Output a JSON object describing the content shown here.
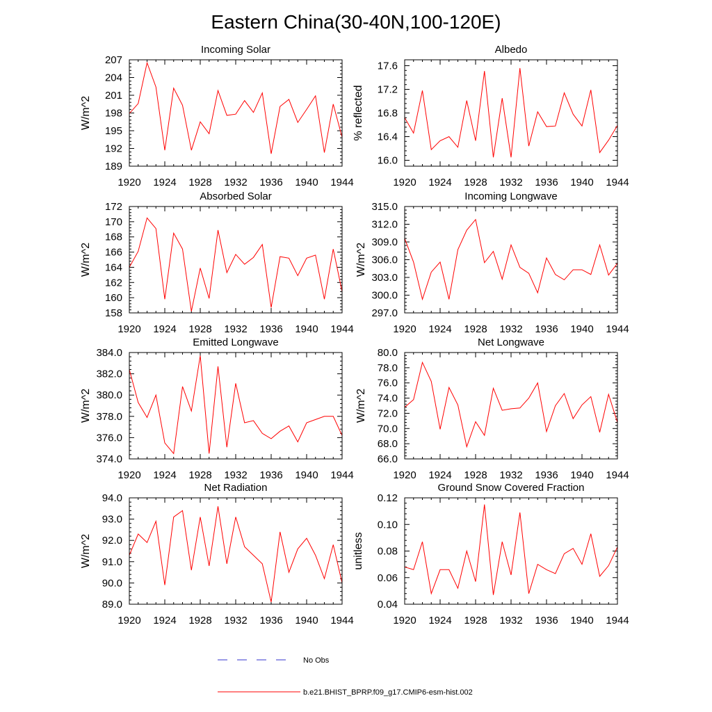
{
  "title": "Eastern China(30-40N,100-120E)",
  "legend": {
    "obs_label": "No Obs",
    "obs_color": "#3333cc",
    "model_label": "b.e21.BHIST_BPRP.f09_g17.CMIP6-esm-hist.002",
    "model_color": "#ff0000"
  },
  "chart_data": [
    {
      "type": "line",
      "title": "Incoming Solar",
      "ylabel": "W/m^2",
      "xlim": [
        1920,
        1944
      ],
      "ylim": [
        189,
        207
      ],
      "yticks": [
        189,
        192,
        195,
        198,
        201,
        204,
        207
      ],
      "ytick_decimals": 0,
      "xticks": [
        1920,
        1924,
        1928,
        1932,
        1936,
        1940,
        1944
      ],
      "series": [
        {
          "name": "b.e21.BHIST_BPRP.f09_g17.CMIP6-esm-hist.002",
          "x": [
            1920,
            1921,
            1922,
            1923,
            1924,
            1925,
            1926,
            1927,
            1928,
            1929,
            1930,
            1931,
            1932,
            1933,
            1934,
            1935,
            1936,
            1937,
            1938,
            1939,
            1940,
            1941,
            1942,
            1943,
            1944
          ],
          "values": [
            197.9,
            199.6,
            206.5,
            202.4,
            191.7,
            202.2,
            199.3,
            191.7,
            196.5,
            194.5,
            201.8,
            197.6,
            197.8,
            200.1,
            198.1,
            201.4,
            191.1,
            199.1,
            200.3,
            196.4,
            198.6,
            200.9,
            191.3,
            199.5,
            193.9
          ]
        }
      ]
    },
    {
      "type": "line",
      "title": "Albedo",
      "ylabel": "% reflected",
      "xlim": [
        1920,
        1944
      ],
      "ylim": [
        15.9,
        17.7
      ],
      "yticks": [
        16.0,
        16.4,
        16.8,
        17.2,
        17.6
      ],
      "ytick_decimals": 1,
      "xticks": [
        1920,
        1924,
        1928,
        1932,
        1936,
        1940,
        1944
      ],
      "series": [
        {
          "name": "b.e21.BHIST_BPRP.f09_g17.CMIP6-esm-hist.002",
          "x": [
            1920,
            1921,
            1922,
            1923,
            1924,
            1925,
            1926,
            1927,
            1928,
            1929,
            1930,
            1931,
            1932,
            1933,
            1934,
            1935,
            1936,
            1937,
            1938,
            1939,
            1940,
            1941,
            1942,
            1943,
            1944
          ],
          "values": [
            16.72,
            16.46,
            17.18,
            16.18,
            16.33,
            16.4,
            16.22,
            17.01,
            16.33,
            17.51,
            16.05,
            17.05,
            16.05,
            17.56,
            16.24,
            16.82,
            16.57,
            16.58,
            17.14,
            16.78,
            16.58,
            17.19,
            16.13,
            16.34,
            16.59
          ]
        }
      ]
    },
    {
      "type": "line",
      "title": "Absorbed Solar",
      "ylabel": "W/m^2",
      "xlim": [
        1920,
        1944
      ],
      "ylim": [
        158,
        172
      ],
      "yticks": [
        158,
        160,
        162,
        164,
        166,
        168,
        170,
        172
      ],
      "ytick_decimals": 0,
      "xticks": [
        1920,
        1924,
        1928,
        1932,
        1936,
        1940,
        1944
      ],
      "series": [
        {
          "name": "b.e21.BHIST_BPRP.f09_g17.CMIP6-esm-hist.002",
          "x": [
            1920,
            1921,
            1922,
            1923,
            1924,
            1925,
            1926,
            1927,
            1928,
            1929,
            1930,
            1931,
            1932,
            1933,
            1934,
            1935,
            1936,
            1937,
            1938,
            1939,
            1940,
            1941,
            1942,
            1943,
            1944
          ],
          "values": [
            164.0,
            166.1,
            170.5,
            169.1,
            159.8,
            168.5,
            166.4,
            158.2,
            163.9,
            159.9,
            168.9,
            163.3,
            165.7,
            164.4,
            165.3,
            167.0,
            158.7,
            165.4,
            165.2,
            162.9,
            165.2,
            165.6,
            159.8,
            166.4,
            160.8
          ]
        }
      ]
    },
    {
      "type": "line",
      "title": "Incoming Longwave",
      "ylabel": "W/m^2",
      "xlim": [
        1920,
        1944
      ],
      "ylim": [
        297,
        315
      ],
      "yticks": [
        297.0,
        300.0,
        303.0,
        306.0,
        309.0,
        312.0,
        315.0
      ],
      "ytick_decimals": 1,
      "xticks": [
        1920,
        1924,
        1928,
        1932,
        1936,
        1940,
        1944
      ],
      "series": [
        {
          "name": "b.e21.BHIST_BPRP.f09_g17.CMIP6-esm-hist.002",
          "x": [
            1920,
            1921,
            1922,
            1923,
            1924,
            1925,
            1926,
            1927,
            1928,
            1929,
            1930,
            1931,
            1932,
            1933,
            1934,
            1935,
            1936,
            1937,
            1938,
            1939,
            1940,
            1941,
            1942,
            1943,
            1944
          ],
          "values": [
            309.6,
            305.6,
            299.3,
            303.9,
            305.6,
            299.3,
            307.7,
            311.0,
            312.8,
            305.5,
            307.4,
            302.7,
            308.5,
            304.7,
            303.7,
            300.4,
            306.3,
            303.5,
            302.6,
            304.3,
            304.3,
            303.5,
            308.5,
            303.4,
            305.4
          ]
        }
      ]
    },
    {
      "type": "line",
      "title": "Emitted Longwave",
      "ylabel": "W/m^2",
      "xlim": [
        1920,
        1944
      ],
      "ylim": [
        374,
        384
      ],
      "yticks": [
        374.0,
        376.0,
        378.0,
        380.0,
        382.0,
        384.0
      ],
      "ytick_decimals": 1,
      "xticks": [
        1920,
        1924,
        1928,
        1932,
        1936,
        1940,
        1944
      ],
      "series": [
        {
          "name": "b.e21.BHIST_BPRP.f09_g17.CMIP6-esm-hist.002",
          "x": [
            1920,
            1921,
            1922,
            1923,
            1924,
            1925,
            1926,
            1927,
            1928,
            1929,
            1930,
            1931,
            1932,
            1933,
            1934,
            1935,
            1936,
            1937,
            1938,
            1939,
            1940,
            1941,
            1942,
            1943,
            1944
          ],
          "values": [
            382.4,
            379.3,
            377.9,
            380.0,
            375.5,
            374.5,
            380.8,
            378.5,
            383.7,
            374.5,
            382.7,
            375.1,
            381.1,
            377.4,
            377.6,
            376.4,
            375.9,
            376.6,
            377.1,
            375.6,
            377.4,
            377.7,
            378.0,
            378.0,
            376.2
          ]
        }
      ]
    },
    {
      "type": "line",
      "title": "Net Longwave",
      "ylabel": "W/m^2",
      "xlim": [
        1920,
        1944
      ],
      "ylim": [
        66,
        80
      ],
      "yticks": [
        66.0,
        68.0,
        70.0,
        72.0,
        74.0,
        76.0,
        78.0,
        80.0
      ],
      "ytick_decimals": 1,
      "xticks": [
        1920,
        1924,
        1928,
        1932,
        1936,
        1940,
        1944
      ],
      "series": [
        {
          "name": "b.e21.BHIST_BPRP.f09_g17.CMIP6-esm-hist.002",
          "x": [
            1920,
            1921,
            1922,
            1923,
            1924,
            1925,
            1926,
            1927,
            1928,
            1929,
            1930,
            1931,
            1932,
            1933,
            1934,
            1935,
            1936,
            1937,
            1938,
            1939,
            1940,
            1941,
            1942,
            1943,
            1944
          ],
          "values": [
            72.8,
            73.8,
            78.7,
            76.2,
            69.9,
            75.4,
            73.1,
            67.6,
            70.9,
            69.1,
            75.3,
            72.4,
            72.6,
            72.7,
            74.0,
            76.0,
            69.6,
            73.0,
            74.6,
            71.3,
            73.1,
            74.2,
            69.5,
            74.5,
            70.8
          ]
        }
      ]
    },
    {
      "type": "line",
      "title": "Net Radiation",
      "ylabel": "W/m^2",
      "xlim": [
        1920,
        1944
      ],
      "ylim": [
        89,
        94
      ],
      "yticks": [
        89.0,
        90.0,
        91.0,
        92.0,
        93.0,
        94.0
      ],
      "ytick_decimals": 1,
      "xticks": [
        1920,
        1924,
        1928,
        1932,
        1936,
        1940,
        1944
      ],
      "series": [
        {
          "name": "b.e21.BHIST_BPRP.f09_g17.CMIP6-esm-hist.002",
          "x": [
            1920,
            1921,
            1922,
            1923,
            1924,
            1925,
            1926,
            1927,
            1928,
            1929,
            1930,
            1931,
            1932,
            1933,
            1934,
            1935,
            1936,
            1937,
            1938,
            1939,
            1940,
            1941,
            1942,
            1943,
            1944
          ],
          "values": [
            91.3,
            92.3,
            91.9,
            92.9,
            89.9,
            93.1,
            93.4,
            90.6,
            93.1,
            90.8,
            93.6,
            90.9,
            93.1,
            91.7,
            91.3,
            90.9,
            89.1,
            92.4,
            90.5,
            91.6,
            92.1,
            91.3,
            90.2,
            91.8,
            90.0
          ]
        }
      ]
    },
    {
      "type": "line",
      "title": "Ground Snow Covered Fraction",
      "ylabel": "unitless",
      "xlim": [
        1920,
        1944
      ],
      "ylim": [
        0.04,
        0.12
      ],
      "yticks": [
        0.04,
        0.06,
        0.08,
        0.1,
        0.12
      ],
      "ytick_decimals": 2,
      "xticks": [
        1920,
        1924,
        1928,
        1932,
        1936,
        1940,
        1944
      ],
      "series": [
        {
          "name": "b.e21.BHIST_BPRP.f09_g17.CMIP6-esm-hist.002",
          "x": [
            1920,
            1921,
            1922,
            1923,
            1924,
            1925,
            1926,
            1927,
            1928,
            1929,
            1930,
            1931,
            1932,
            1933,
            1934,
            1935,
            1936,
            1937,
            1938,
            1939,
            1940,
            1941,
            1942,
            1943,
            1944
          ],
          "values": [
            0.068,
            0.066,
            0.087,
            0.048,
            0.066,
            0.066,
            0.052,
            0.08,
            0.057,
            0.115,
            0.047,
            0.087,
            0.062,
            0.109,
            0.048,
            0.07,
            0.066,
            0.063,
            0.078,
            0.082,
            0.07,
            0.093,
            0.061,
            0.069,
            0.083
          ]
        }
      ]
    }
  ]
}
